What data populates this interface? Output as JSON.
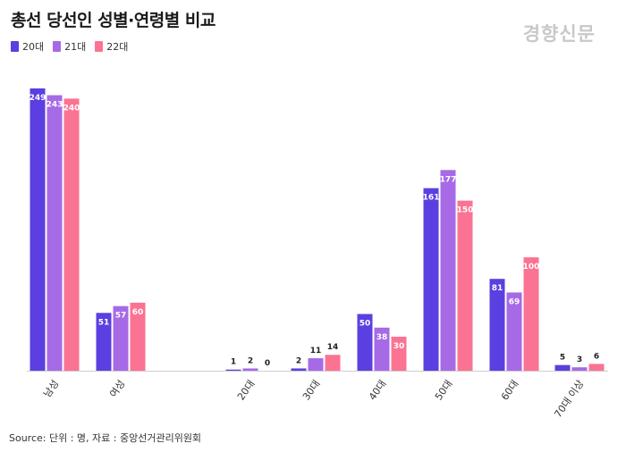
{
  "title": "총선 당선인 성별·연령별 비교",
  "brand": "경향신문",
  "source": "Source: 단위 : 명, 자료 : 중앙선거관리위원회",
  "colors": {
    "20대": "#5b3fe0",
    "21대": "#a66ae6",
    "22대": "#fb7392",
    "axis": "#cfcfcf",
    "label_dark": "#222222",
    "label_light": "#ffffff"
  },
  "chart_data": {
    "type": "bar",
    "title": "총선 당선인 성별·연령별 비교",
    "xlabel": "",
    "ylabel": "",
    "ylim": [
      0,
      260
    ],
    "categories": [
      "남성",
      "여성",
      "20대",
      "30대",
      "40대",
      "50대",
      "60대",
      "70대 이상"
    ],
    "series": [
      {
        "name": "20대",
        "values": [
          249,
          51,
          1,
          2,
          50,
          161,
          81,
          5
        ]
      },
      {
        "name": "21대",
        "values": [
          243,
          57,
          2,
          11,
          38,
          177,
          69,
          3
        ]
      },
      {
        "name": "22대",
        "values": [
          240,
          60,
          0,
          14,
          30,
          150,
          100,
          6
        ]
      }
    ],
    "legend_position": "top-left",
    "grid": false
  }
}
